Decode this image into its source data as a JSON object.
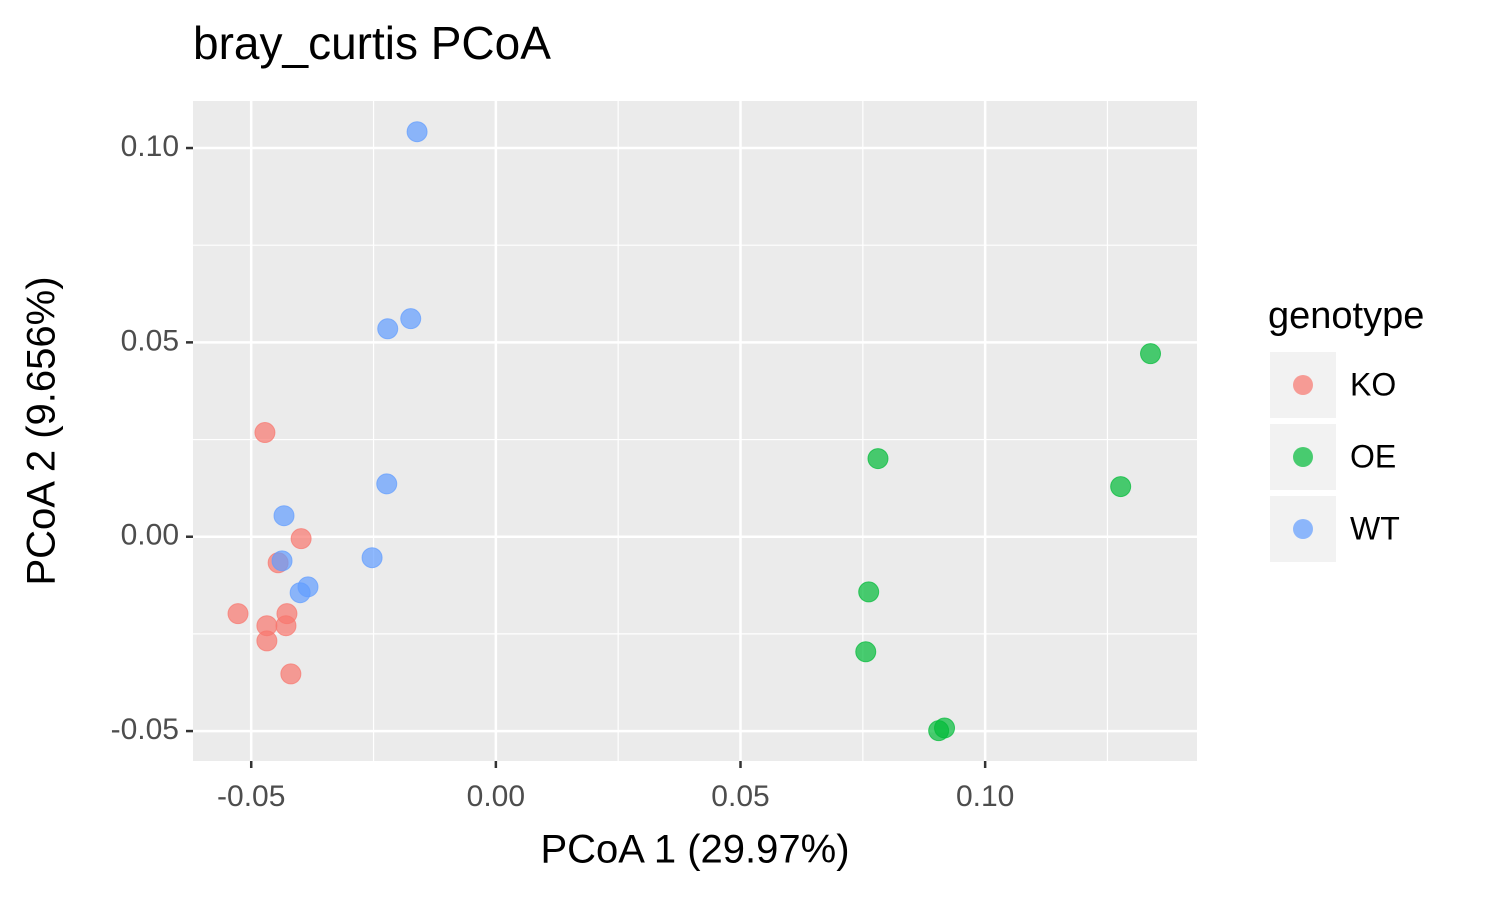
{
  "chart_data": {
    "type": "scatter",
    "title": "bray_curtis PCoA",
    "x_label": "PCoA 1 (29.97%)",
    "y_label": "PCoA 2 (9.656%)",
    "legend_title": "genotype",
    "legend_position": "right",
    "grid": true,
    "xlim": [
      -0.0619,
      0.1433
    ],
    "ylim": [
      -0.0577,
      0.1121
    ],
    "xticks": [
      {
        "value": -0.05,
        "label": "-0.05"
      },
      {
        "value": 0,
        "label": "0.00"
      },
      {
        "value": 0.05,
        "label": "0.05"
      },
      {
        "value": 0.1,
        "label": "0.10"
      }
    ],
    "yticks": [
      {
        "value": -0.05,
        "label": "-0.05"
      },
      {
        "value": 0,
        "label": "0.00"
      },
      {
        "value": 0.05,
        "label": "0.05"
      },
      {
        "value": 0.1,
        "label": "0.10"
      }
    ],
    "series": [
      {
        "name": "KO",
        "color": "#F8766D",
        "x": [
          -0.0472,
          -0.0398,
          -0.0445,
          -0.0527,
          -0.0427,
          -0.0468,
          -0.0429,
          -0.0468,
          -0.0419
        ],
        "values": [
          0.0268,
          -0.0005,
          -0.0067,
          -0.0198,
          -0.0198,
          -0.0229,
          -0.0229,
          -0.0268,
          -0.0353
        ]
      },
      {
        "name": "OE",
        "color": "#00BA38",
        "x": [
          0.1338,
          0.0781,
          0.1277,
          0.0762,
          0.0756,
          0.0917,
          0.0905
        ],
        "values": [
          0.0471,
          0.0201,
          0.0129,
          -0.0142,
          -0.0296,
          -0.0492,
          -0.0499
        ]
      },
      {
        "name": "WT",
        "color": "#619CFF",
        "x": [
          -0.0161,
          -0.0174,
          -0.0221,
          -0.0223,
          -0.0433,
          -0.0437,
          -0.0253,
          -0.0384,
          -0.04
        ],
        "values": [
          0.1042,
          0.0561,
          0.0535,
          0.0136,
          0.0054,
          -0.0062,
          -0.0054,
          -0.0129,
          -0.0144
        ]
      }
    ]
  }
}
